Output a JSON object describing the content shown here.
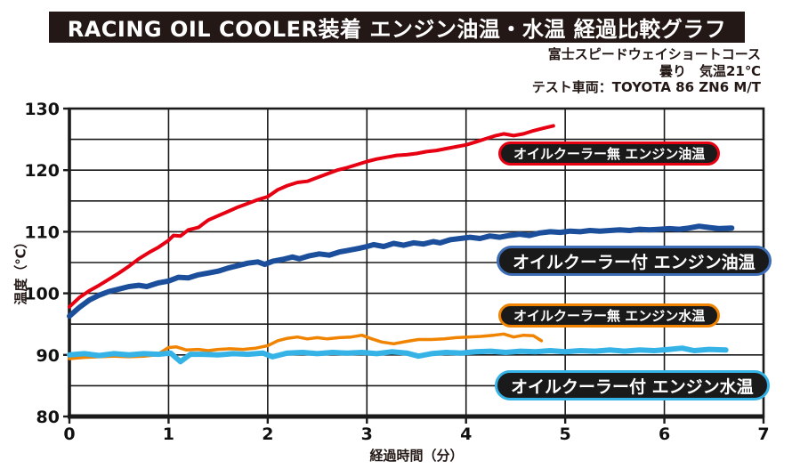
{
  "header": {
    "title": "RACING OIL COOLER装着 エンジン油温・水温 経過比較グラフ",
    "subtitle_lines": [
      "富士スピードウェイショートコース",
      "曇り　気温21℃",
      "テスト車両：TOYOTA 86 ZN6 M/T"
    ]
  },
  "chart_data": {
    "type": "line",
    "title": "RACING OIL COOLER装着 エンジン油温・水温 経過比較グラフ",
    "xlabel": "経過時間（分）",
    "ylabel": "温度（℃）",
    "xlim": [
      0,
      7
    ],
    "ylim": [
      80,
      130
    ],
    "x_ticks": [
      0,
      1,
      2,
      3,
      4,
      5,
      6,
      7
    ],
    "y_ticks": [
      80,
      90,
      100,
      110,
      120,
      130
    ],
    "x_grid_step": 1,
    "y_grid_step": 5,
    "grid": true,
    "grid_color": "#1a1a1a",
    "legend_position": "on-chart-callouts",
    "series": [
      {
        "id": "no-cooler-oil-temp",
        "label": "オイルクーラー無 エンジン油温",
        "color": "#e60012",
        "width": 4,
        "points": [
          [
            0,
            97.8
          ],
          [
            0.1,
            99.3
          ],
          [
            0.2,
            100.4
          ],
          [
            0.3,
            101.3
          ],
          [
            0.4,
            102.3
          ],
          [
            0.5,
            103.3
          ],
          [
            0.6,
            104.4
          ],
          [
            0.7,
            105.6
          ],
          [
            0.8,
            106.6
          ],
          [
            0.9,
            107.5
          ],
          [
            1.0,
            108.6
          ],
          [
            1.05,
            109.4
          ],
          [
            1.12,
            109.3
          ],
          [
            1.2,
            110.3
          ],
          [
            1.3,
            110.7
          ],
          [
            1.4,
            111.9
          ],
          [
            1.5,
            112.6
          ],
          [
            1.6,
            113.3
          ],
          [
            1.7,
            114.0
          ],
          [
            1.8,
            114.6
          ],
          [
            1.9,
            115.2
          ],
          [
            2.0,
            115.7
          ],
          [
            2.1,
            116.8
          ],
          [
            2.2,
            117.5
          ],
          [
            2.3,
            118.0
          ],
          [
            2.4,
            118.2
          ],
          [
            2.5,
            118.8
          ],
          [
            2.6,
            119.4
          ],
          [
            2.7,
            120.0
          ],
          [
            2.8,
            120.4
          ],
          [
            2.9,
            120.9
          ],
          [
            3.0,
            121.4
          ],
          [
            3.1,
            121.8
          ],
          [
            3.2,
            122.1
          ],
          [
            3.3,
            122.4
          ],
          [
            3.4,
            122.5
          ],
          [
            3.5,
            122.7
          ],
          [
            3.6,
            123.0
          ],
          [
            3.7,
            123.2
          ],
          [
            3.8,
            123.5
          ],
          [
            3.9,
            123.8
          ],
          [
            4.0,
            124.1
          ],
          [
            4.1,
            124.6
          ],
          [
            4.2,
            125.1
          ],
          [
            4.3,
            125.6
          ],
          [
            4.38,
            125.9
          ],
          [
            4.48,
            125.6
          ],
          [
            4.58,
            125.9
          ],
          [
            4.68,
            126.4
          ],
          [
            4.78,
            126.8
          ],
          [
            4.88,
            127.2
          ]
        ]
      },
      {
        "id": "with-cooler-oil-temp",
        "label": "オイルクーラー付 エンジン油温",
        "color": "#1b4e9b",
        "width": 6,
        "points": [
          [
            0,
            96.3
          ],
          [
            0.1,
            97.7
          ],
          [
            0.2,
            98.9
          ],
          [
            0.3,
            99.7
          ],
          [
            0.4,
            100.3
          ],
          [
            0.5,
            100.7
          ],
          [
            0.6,
            101.1
          ],
          [
            0.7,
            101.3
          ],
          [
            0.78,
            101.1
          ],
          [
            0.9,
            101.7
          ],
          [
            1.0,
            102.0
          ],
          [
            1.1,
            102.6
          ],
          [
            1.2,
            102.5
          ],
          [
            1.3,
            103.0
          ],
          [
            1.4,
            103.3
          ],
          [
            1.5,
            103.6
          ],
          [
            1.6,
            104.1
          ],
          [
            1.7,
            104.5
          ],
          [
            1.8,
            104.9
          ],
          [
            1.9,
            105.1
          ],
          [
            1.97,
            104.7
          ],
          [
            2.05,
            105.2
          ],
          [
            2.15,
            105.5
          ],
          [
            2.25,
            105.9
          ],
          [
            2.32,
            105.6
          ],
          [
            2.42,
            106.1
          ],
          [
            2.52,
            106.4
          ],
          [
            2.62,
            106.2
          ],
          [
            2.72,
            106.7
          ],
          [
            2.82,
            107.0
          ],
          [
            2.92,
            107.3
          ],
          [
            3.0,
            107.6
          ],
          [
            3.07,
            107.9
          ],
          [
            3.17,
            107.6
          ],
          [
            3.27,
            108.1
          ],
          [
            3.37,
            107.8
          ],
          [
            3.47,
            108.2
          ],
          [
            3.57,
            108.0
          ],
          [
            3.67,
            108.4
          ],
          [
            3.74,
            108.2
          ],
          [
            3.84,
            108.7
          ],
          [
            3.94,
            108.9
          ],
          [
            4.04,
            109.1
          ],
          [
            4.14,
            108.9
          ],
          [
            4.24,
            109.3
          ],
          [
            4.34,
            109.1
          ],
          [
            4.44,
            109.4
          ],
          [
            4.54,
            109.6
          ],
          [
            4.64,
            109.4
          ],
          [
            4.74,
            109.8
          ],
          [
            4.85,
            110.0
          ],
          [
            4.95,
            109.9
          ],
          [
            5.05,
            110.1
          ],
          [
            5.15,
            110.0
          ],
          [
            5.25,
            110.2
          ],
          [
            5.35,
            110.1
          ],
          [
            5.45,
            110.2
          ],
          [
            5.55,
            110.3
          ],
          [
            5.65,
            110.2
          ],
          [
            5.75,
            110.4
          ],
          [
            5.85,
            110.3
          ],
          [
            5.95,
            110.4
          ],
          [
            6.05,
            110.5
          ],
          [
            6.15,
            110.4
          ],
          [
            6.25,
            110.6
          ],
          [
            6.35,
            110.9
          ],
          [
            6.45,
            110.7
          ],
          [
            6.55,
            110.5
          ],
          [
            6.68,
            110.6
          ]
        ]
      },
      {
        "id": "no-cooler-water-temp",
        "label": "オイルクーラー無 エンジン水温",
        "color": "#f08300",
        "width": 3.5,
        "points": [
          [
            0,
            89.4
          ],
          [
            0.15,
            89.6
          ],
          [
            0.3,
            89.7
          ],
          [
            0.45,
            89.8
          ],
          [
            0.6,
            89.7
          ],
          [
            0.75,
            89.8
          ],
          [
            0.88,
            90.0
          ],
          [
            1.0,
            91.2
          ],
          [
            1.08,
            91.3
          ],
          [
            1.18,
            90.8
          ],
          [
            1.3,
            90.9
          ],
          [
            1.4,
            90.7
          ],
          [
            1.5,
            90.9
          ],
          [
            1.62,
            91.0
          ],
          [
            1.75,
            90.9
          ],
          [
            1.88,
            91.1
          ],
          [
            2.0,
            91.5
          ],
          [
            2.1,
            92.3
          ],
          [
            2.2,
            92.7
          ],
          [
            2.3,
            92.9
          ],
          [
            2.4,
            92.6
          ],
          [
            2.5,
            92.8
          ],
          [
            2.6,
            92.6
          ],
          [
            2.72,
            92.8
          ],
          [
            2.84,
            92.9
          ],
          [
            2.95,
            93.2
          ],
          [
            3.05,
            92.6
          ],
          [
            3.15,
            92.1
          ],
          [
            3.27,
            91.8
          ],
          [
            3.4,
            92.2
          ],
          [
            3.52,
            92.5
          ],
          [
            3.65,
            92.5
          ],
          [
            3.78,
            92.6
          ],
          [
            3.9,
            92.8
          ],
          [
            4.02,
            92.9
          ],
          [
            4.15,
            93.0
          ],
          [
            4.28,
            93.2
          ],
          [
            4.38,
            93.4
          ],
          [
            4.48,
            92.9
          ],
          [
            4.58,
            93.2
          ],
          [
            4.68,
            93.1
          ],
          [
            4.76,
            92.3
          ]
        ]
      },
      {
        "id": "with-cooler-water-temp",
        "label": "オイルクーラー付 エンジン水温",
        "color": "#36b3e6",
        "width": 6,
        "points": [
          [
            0,
            90.0
          ],
          [
            0.15,
            90.2
          ],
          [
            0.3,
            89.9
          ],
          [
            0.45,
            90.2
          ],
          [
            0.6,
            90.0
          ],
          [
            0.75,
            90.2
          ],
          [
            0.9,
            90.1
          ],
          [
            1.02,
            90.3
          ],
          [
            1.12,
            88.9
          ],
          [
            1.22,
            90.1
          ],
          [
            1.35,
            90.1
          ],
          [
            1.5,
            90.0
          ],
          [
            1.65,
            90.2
          ],
          [
            1.8,
            90.1
          ],
          [
            1.95,
            90.3
          ],
          [
            2.05,
            89.7
          ],
          [
            2.2,
            90.3
          ],
          [
            2.35,
            90.4
          ],
          [
            2.5,
            90.2
          ],
          [
            2.65,
            90.4
          ],
          [
            2.8,
            90.3
          ],
          [
            2.95,
            90.4
          ],
          [
            3.1,
            90.2
          ],
          [
            3.25,
            90.5
          ],
          [
            3.4,
            90.3
          ],
          [
            3.52,
            89.8
          ],
          [
            3.65,
            90.2
          ],
          [
            3.8,
            90.4
          ],
          [
            3.95,
            90.3
          ],
          [
            4.1,
            90.5
          ],
          [
            4.25,
            90.6
          ],
          [
            4.4,
            90.4
          ],
          [
            4.55,
            90.6
          ],
          [
            4.7,
            90.5
          ],
          [
            4.85,
            90.7
          ],
          [
            5.0,
            90.5
          ],
          [
            5.15,
            90.7
          ],
          [
            5.3,
            90.6
          ],
          [
            5.45,
            90.8
          ],
          [
            5.6,
            90.6
          ],
          [
            5.75,
            90.8
          ],
          [
            5.9,
            90.7
          ],
          [
            6.05,
            90.9
          ],
          [
            6.18,
            91.1
          ],
          [
            6.3,
            90.7
          ],
          [
            6.45,
            90.9
          ],
          [
            6.62,
            90.8
          ]
        ]
      }
    ]
  }
}
